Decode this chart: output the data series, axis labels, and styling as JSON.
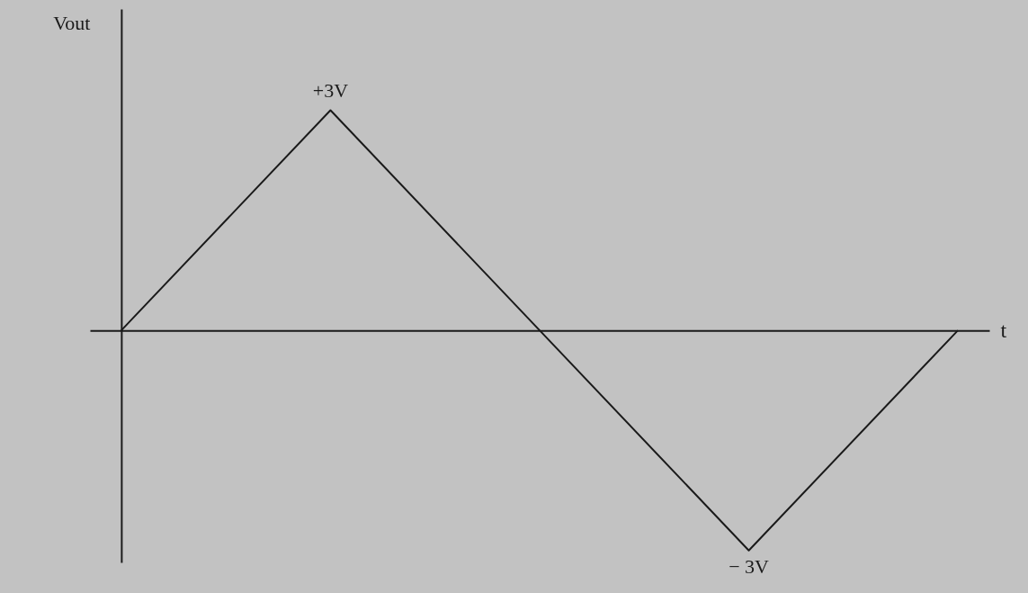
{
  "chart_data": {
    "type": "line",
    "xlabel": "t",
    "ylabel": "Vout",
    "categories": [
      null,
      null,
      null,
      null,
      null
    ],
    "series": [
      {
        "color": "#1a1a1a",
        "values": [
          0,
          3,
          0,
          -3,
          0
        ],
        "value_labels": [
          null,
          "+3V",
          null,
          "− 3V",
          null
        ]
      }
    ],
    "tick_labels": false
  }
}
